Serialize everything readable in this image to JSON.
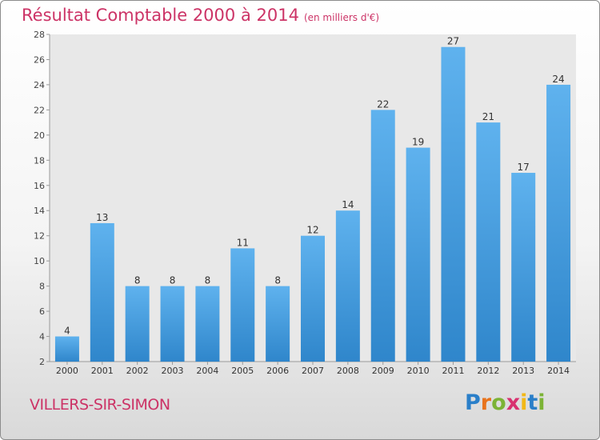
{
  "header": {
    "title": "Résultat Comptable 2000 à 2014",
    "subtitle": "(en milliers d'€)"
  },
  "footer": {
    "commune": "VILLERS-SIR-SIMON",
    "logo_letters": [
      "P",
      "r",
      "o",
      "x",
      "i",
      "t",
      "i"
    ]
  },
  "colors": {
    "bar": "#3d97da",
    "title": "#cc3366",
    "plot_background": "#e8e8e8"
  },
  "chart_data": {
    "type": "bar",
    "title": "Résultat Comptable 2000 à 2014",
    "categories": [
      "2000",
      "2001",
      "2002",
      "2003",
      "2004",
      "2005",
      "2006",
      "2007",
      "2008",
      "2009",
      "2010",
      "2011",
      "2012",
      "2013",
      "2014"
    ],
    "values": [
      4,
      13,
      8,
      8,
      8,
      11,
      8,
      12,
      14,
      22,
      19,
      27,
      21,
      17,
      24
    ],
    "ylim": [
      2,
      28
    ],
    "yticks": [
      2,
      4,
      6,
      8,
      10,
      12,
      14,
      16,
      18,
      20,
      22,
      24,
      26,
      28
    ],
    "grid": false,
    "legend": "none"
  }
}
